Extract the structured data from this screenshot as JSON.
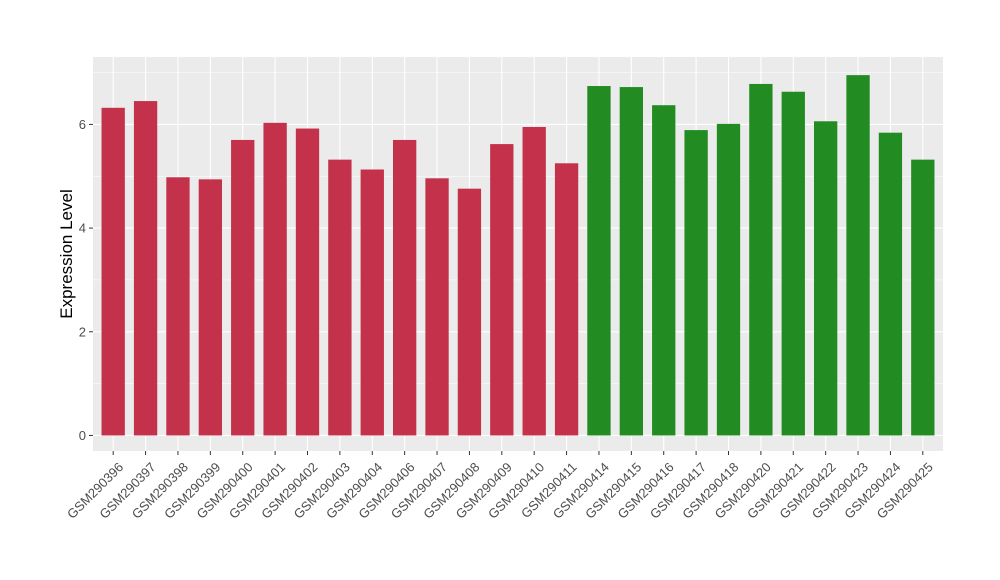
{
  "chart_data": {
    "type": "bar",
    "title": "",
    "xlabel": "",
    "ylabel": "Expression Level",
    "ylim": [
      -0.3,
      7.3
    ],
    "yticks": [
      0,
      2,
      4,
      6
    ],
    "grid": true,
    "legend": "none",
    "categories": [
      "GSM290396",
      "GSM290397",
      "GSM290398",
      "GSM290399",
      "GSM290400",
      "GSM290401",
      "GSM290402",
      "GSM290403",
      "GSM290404",
      "GSM290406",
      "GSM290407",
      "GSM290408",
      "GSM290409",
      "GSM290410",
      "GSM290411",
      "GSM290414",
      "GSM290415",
      "GSM290416",
      "GSM290417",
      "GSM290418",
      "GSM290420",
      "GSM290421",
      "GSM290422",
      "GSM290423",
      "GSM290424",
      "GSM290425"
    ],
    "values": [
      6.32,
      6.45,
      4.98,
      4.94,
      5.7,
      6.03,
      5.92,
      5.32,
      5.13,
      5.7,
      4.96,
      4.76,
      5.62,
      5.95,
      5.25,
      6.74,
      6.72,
      6.37,
      5.89,
      6.01,
      6.78,
      6.63,
      6.06,
      6.95,
      5.84,
      5.32
    ],
    "groups": [
      "1",
      "1",
      "1",
      "1",
      "1",
      "1",
      "1",
      "1",
      "1",
      "1",
      "1",
      "1",
      "1",
      "1",
      "1",
      "2",
      "2",
      "2",
      "2",
      "2",
      "2",
      "2",
      "2",
      "2",
      "2",
      "2"
    ],
    "colors": {
      "1": "#C3314B",
      "2": "#228B22"
    },
    "panel_color": "#EBEBEB"
  }
}
